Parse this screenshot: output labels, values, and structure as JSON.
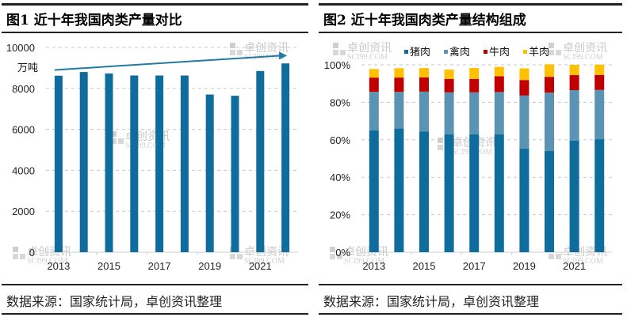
{
  "watermark": {
    "text": "卓创资讯",
    "sub": "SCI99.COM"
  },
  "panels": [
    {
      "title": "图1 近十年我国肉类产量对比",
      "source": "数据来源：国家统计局，卓创资讯整理"
    },
    {
      "title": "图2 近十年我国肉类产量结构组成",
      "source": "数据来源：国家统计局，卓创资讯整理"
    }
  ],
  "chart_data": [
    {
      "type": "bar",
      "title": "图1 近十年我国肉类产量对比",
      "xlabel": "",
      "ylabel": "万吨",
      "ylim": [
        0,
        10000
      ],
      "yticks": [
        0,
        2000,
        4000,
        6000,
        8000,
        10000
      ],
      "grid": true,
      "categories": [
        "2013",
        "2014",
        "2015",
        "2016",
        "2017",
        "2018",
        "2019",
        "2020",
        "2021",
        "2022"
      ],
      "xtick_labels": [
        "2013",
        "2015",
        "2017",
        "2019",
        "2021"
      ],
      "values": [
        8620,
        8800,
        8730,
        8630,
        8630,
        8630,
        7700,
        7640,
        8850,
        9220
      ],
      "color": "#0f6d9e",
      "annotations": [
        {
          "type": "trend-arrow",
          "from": {
            "x": "2013",
            "y": 8900
          },
          "to": {
            "x": "2022",
            "y": 9600
          },
          "color": "#1f7aa6"
        }
      ]
    },
    {
      "type": "bar",
      "stacked": true,
      "title": "图2 近十年我国肉类产量结构组成",
      "xlabel": "",
      "ylabel": "",
      "ylim": [
        0,
        100
      ],
      "yticks": [
        "0%",
        "20%",
        "40%",
        "60%",
        "80%",
        "100%"
      ],
      "grid": true,
      "legend": "top",
      "categories": [
        "2013",
        "2014",
        "2015",
        "2016",
        "2017",
        "2018",
        "2019",
        "2020",
        "2021",
        "2022"
      ],
      "xtick_labels": [
        "2013",
        "2015",
        "2017",
        "2019",
        "2021"
      ],
      "series": [
        {
          "name": "猪肉",
          "color": "#0f6d9e",
          "values": [
            65.0,
            66.0,
            64.5,
            63.0,
            63.0,
            63.0,
            55.3,
            54.0,
            59.5,
            60.3
          ]
        },
        {
          "name": "禽肉",
          "color": "#5b93b3",
          "values": [
            20.6,
            19.6,
            21.2,
            22.3,
            22.3,
            22.5,
            28.3,
            31.2,
            27.0,
            26.3
          ]
        },
        {
          "name": "牛肉",
          "color": "#c00000",
          "values": [
            7.6,
            7.6,
            7.6,
            7.2,
            7.2,
            8.4,
            8.3,
            8.4,
            8.0,
            8.0
          ]
        },
        {
          "name": "羊肉",
          "color": "#ffc000",
          "values": [
            4.6,
            5.0,
            5.0,
            5.0,
            5.8,
            5.0,
            6.2,
            6.7,
            5.5,
            5.5
          ]
        }
      ]
    }
  ]
}
